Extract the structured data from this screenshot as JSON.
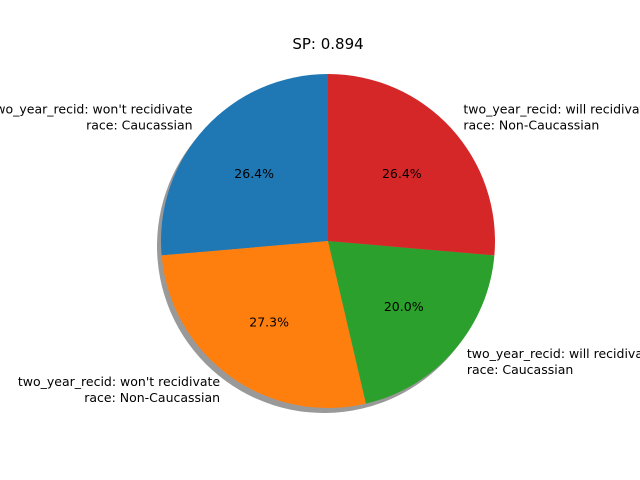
{
  "chart_data": {
    "type": "pie",
    "title": "SP: 0.894",
    "shadow": true,
    "start_angle_deg": 90,
    "direction": "counterclockwise",
    "slices": [
      {
        "label_lines": [
          "two_year_recid: won't recidivate",
          "race: Caucassian"
        ],
        "percent": 26.4,
        "value_label": "26.4%",
        "color": "#1f77b4"
      },
      {
        "label_lines": [
          "two_year_recid: won't recidivate",
          "race: Non-Caucassian"
        ],
        "percent": 27.3,
        "value_label": "27.3%",
        "color": "#ff7f0e"
      },
      {
        "label_lines": [
          "two_year_recid: will recidivate",
          "race: Caucassian"
        ],
        "percent": 20.0,
        "value_label": "20.0%",
        "color": "#2ca02c"
      },
      {
        "label_lines": [
          "two_year_recid: will recidivate",
          "race: Non-Caucassian"
        ],
        "percent": 26.4,
        "value_label": "26.4%",
        "color": "#d62728"
      }
    ]
  }
}
